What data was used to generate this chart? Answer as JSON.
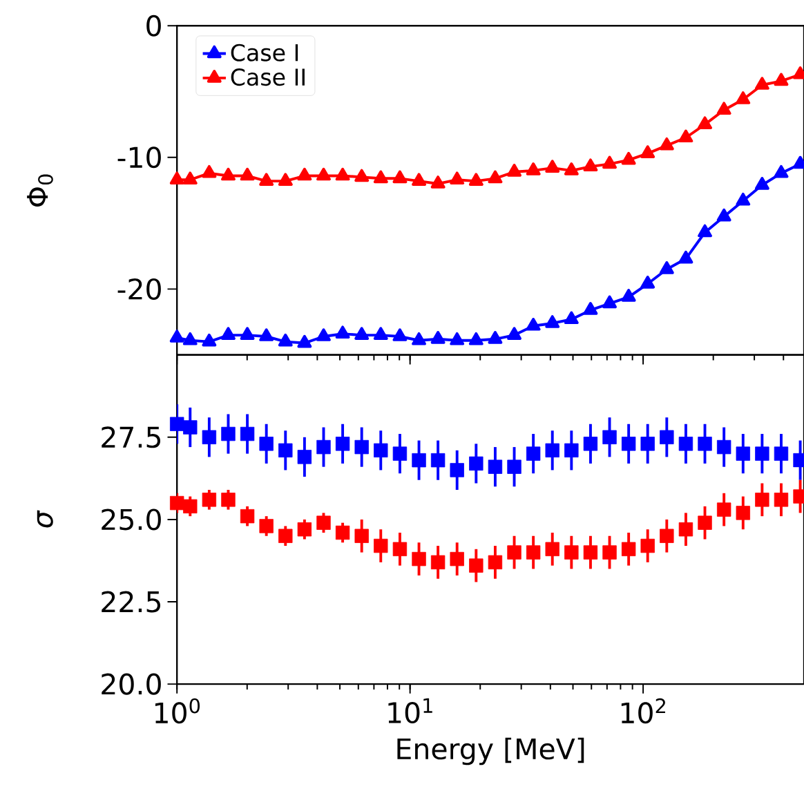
{
  "chart_data": [
    {
      "type": "line",
      "ylabel": "Φ$_{0}$",
      "log": "x",
      "marker": "triangle",
      "legend": "top left",
      "tick_labels": "y",
      "x": [
        1.0,
        1.139,
        1.375,
        1.66,
        2.004,
        2.419,
        2.921,
        3.526,
        4.257,
        5.139,
        6.204,
        7.49,
        9.044,
        10.92,
        13.18,
        15.91,
        19.21,
        23.19,
        28.0,
        33.8,
        40.8,
        49.26,
        59.47,
        71.8,
        86.68,
        104.6,
        126.3,
        152.5,
        184.1,
        222.3,
        268.4,
        324.0,
        391.2,
        472.2
      ],
      "xlim": [
        1,
        490
      ],
      "ylim": [
        -25,
        0
      ],
      "yticks": [
        -20,
        -10,
        0
      ],
      "series": [
        {
          "name": "Case I",
          "color": "#0000ff",
          "values": [
            -23.7,
            -23.9,
            -24.0,
            -23.5,
            -23.5,
            -23.6,
            -24.0,
            -24.1,
            -23.6,
            -23.4,
            -23.5,
            -23.5,
            -23.6,
            -23.9,
            -23.8,
            -23.9,
            -23.9,
            -23.8,
            -23.5,
            -22.8,
            -22.6,
            -22.3,
            -21.6,
            -21.1,
            -20.6,
            -19.6,
            -18.5,
            -17.7,
            -15.7,
            -14.5,
            -13.3,
            -12.1,
            -11.2,
            -10.5
          ]
        },
        {
          "name": "Case II",
          "color": "#ff0000",
          "values": [
            -11.7,
            -11.7,
            -11.2,
            -11.4,
            -11.4,
            -11.8,
            -11.8,
            -11.4,
            -11.4,
            -11.4,
            -11.5,
            -11.6,
            -11.6,
            -11.8,
            -12.0,
            -11.7,
            -11.8,
            -11.6,
            -11.1,
            -11.0,
            -10.8,
            -11.0,
            -10.7,
            -10.5,
            -10.2,
            -9.7,
            -9.1,
            -8.5,
            -7.5,
            -6.4,
            -5.6,
            -4.5,
            -4.2,
            -3.7
          ]
        }
      ]
    },
    {
      "type": "scatter",
      "ylabel": "*σ*",
      "xlabel": "Energy [MeV]",
      "log": "x",
      "marker": "square",
      "x": [
        1.0,
        1.139,
        1.375,
        1.66,
        2.004,
        2.419,
        2.921,
        3.526,
        4.257,
        5.139,
        6.204,
        7.49,
        9.044,
        10.92,
        13.18,
        15.91,
        19.21,
        23.19,
        28.0,
        33.8,
        40.8,
        49.26,
        59.47,
        71.8,
        86.68,
        104.6,
        126.3,
        152.5,
        184.1,
        222.3,
        268.4,
        324.0,
        391.2,
        472.2
      ],
      "xlim": [
        1,
        490
      ],
      "xticks": [
        {
          "value": 1,
          "label": "10$^{0}$"
        },
        {
          "value": 10,
          "label": "10$^{1}$"
        },
        {
          "value": 100,
          "label": "10$^{2}$"
        }
      ],
      "ylim": [
        20,
        30
      ],
      "yticks": [
        {
          "value": 20,
          "label": "20.0"
        },
        22.5,
        {
          "value": 25,
          "label": "25.0"
        },
        27.5
      ],
      "series": [
        {
          "color": "#0000ff",
          "values": [
            27.9,
            27.8,
            27.5,
            27.6,
            27.6,
            27.3,
            27.1,
            26.9,
            27.2,
            27.3,
            27.2,
            27.1,
            27.0,
            26.8,
            26.8,
            26.5,
            26.7,
            26.6,
            26.6,
            27.0,
            27.1,
            27.1,
            27.3,
            27.5,
            27.3,
            27.3,
            27.5,
            27.3,
            27.3,
            27.2,
            27.0,
            27.0,
            27.0,
            26.8
          ],
          "errors": [
            0.6,
            0.6,
            0.6,
            0.6,
            0.6,
            0.6,
            0.6,
            0.6,
            0.6,
            0.6,
            0.6,
            0.6,
            0.6,
            0.6,
            0.6,
            0.6,
            0.6,
            0.6,
            0.6,
            0.6,
            0.6,
            0.6,
            0.6,
            0.6,
            0.6,
            0.6,
            0.6,
            0.6,
            0.6,
            0.6,
            0.6,
            0.6,
            0.6,
            0.6
          ]
        },
        {
          "color": "#ff0000",
          "values": [
            25.5,
            25.4,
            25.6,
            25.6,
            25.1,
            24.8,
            24.5,
            24.7,
            24.9,
            24.6,
            24.5,
            24.2,
            24.1,
            23.8,
            23.7,
            23.8,
            23.6,
            23.7,
            24.0,
            24.0,
            24.1,
            24.0,
            24.0,
            24.0,
            24.1,
            24.2,
            24.5,
            24.7,
            24.9,
            25.3,
            25.2,
            25.6,
            25.6,
            25.7
          ],
          "errors": [
            0.3,
            0.3,
            0.3,
            0.3,
            0.3,
            0.3,
            0.3,
            0.3,
            0.3,
            0.3,
            0.5,
            0.5,
            0.5,
            0.5,
            0.5,
            0.5,
            0.5,
            0.5,
            0.5,
            0.5,
            0.5,
            0.5,
            0.5,
            0.5,
            0.5,
            0.5,
            0.5,
            0.5,
            0.5,
            0.5,
            0.5,
            0.5,
            0.5,
            0.5
          ]
        }
      ]
    }
  ]
}
